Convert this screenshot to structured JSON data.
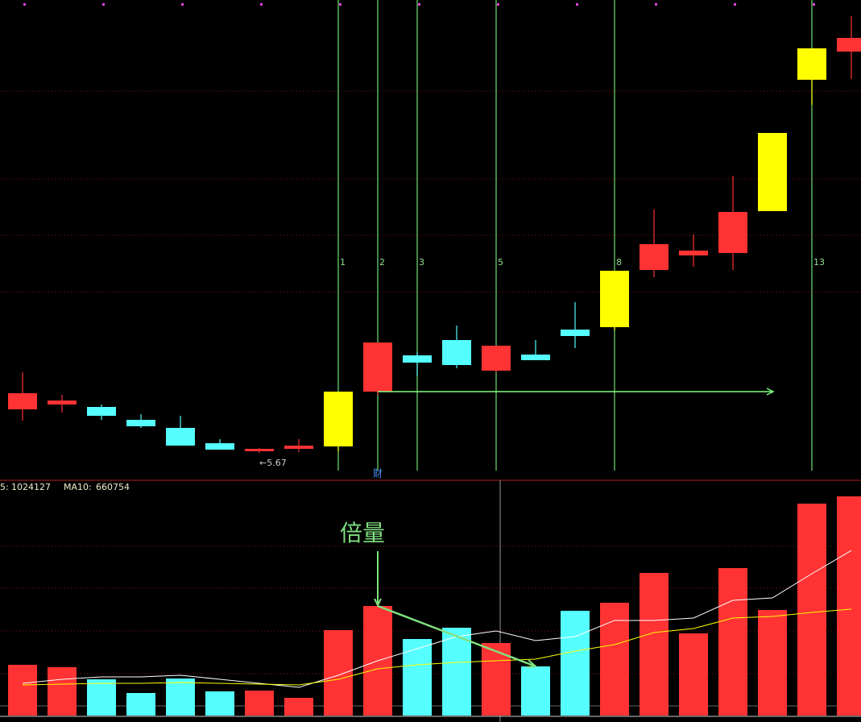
{
  "chart_data": [
    {
      "type": "candlestick",
      "open": [
        6.21,
        6.27,
        6.24,
        6.08,
        5.98,
        5.79,
        5.69,
        5.72,
        5.75,
        6.43,
        6.88,
        7.07,
        6.69,
        6.89,
        7.2,
        7.23,
        7.94,
        8.12,
        8.15,
        8.67,
        10.3,
        10.65
      ],
      "close": [
        6.41,
        6.32,
        6.13,
        6.0,
        5.76,
        5.71,
        5.72,
        5.76,
        6.43,
        7.04,
        6.79,
        6.76,
        7.0,
        6.82,
        7.12,
        7.93,
        8.26,
        8.18,
        8.66,
        9.64,
        10.69,
        10.82
      ],
      "high": [
        6.67,
        6.39,
        6.27,
        6.15,
        6.13,
        5.84,
        5.73,
        5.84,
        6.43,
        7.04,
        6.92,
        7.25,
        7.0,
        7.07,
        7.54,
        7.93,
        8.69,
        8.38,
        9.11,
        9.64,
        10.69,
        11.09
      ],
      "low": [
        6.07,
        6.17,
        6.08,
        5.98,
        5.76,
        5.71,
        5.67,
        5.68,
        5.69,
        6.39,
        6.63,
        6.72,
        6.67,
        6.82,
        6.97,
        7.19,
        7.85,
        7.98,
        7.94,
        8.67,
        9.99,
        10.31
      ],
      "colors": [
        "#ff3333",
        "#ff3333",
        "#55ffff",
        "#55ffff",
        "#55ffff",
        "#55ffff",
        "#ff3333",
        "#ff3333",
        "#ffff00",
        "#ff3333",
        "#55ffff",
        "#55ffff",
        "#ff3333",
        "#55ffff",
        "#55ffff",
        "#ffff00",
        "#ff3333",
        "#ff3333",
        "#ff3333",
        "#ffff00",
        "#ffff00",
        "#ff3333"
      ],
      "ylim": [
        5.33,
        11.29
      ],
      "low_label": "←5.67",
      "time_labels": [
        null,
        null,
        null,
        null,
        null,
        null,
        null,
        null,
        "1",
        "2",
        "3",
        null,
        "5",
        null,
        null,
        "8",
        null,
        null,
        null,
        null,
        "13",
        null
      ],
      "level": 6.43,
      "marker": "财"
    },
    {
      "type": "volume",
      "values": [
        315000,
        300000,
        225000,
        140000,
        230000,
        150000,
        155000,
        110000,
        530000,
        680000,
        475000,
        545000,
        450000,
        305000,
        650000,
        700000,
        885000,
        510000,
        915000,
        655000,
        1315000,
        1360000
      ],
      "up_color": "#ff3333",
      "down_color": "#55ffff",
      "ylim": [
        0,
        1450000
      ],
      "lines": [
        {
          "name": "5:",
          "color": "#ffffff",
          "values": [
            200000,
            225000,
            240000,
            240000,
            250000,
            225000,
            200000,
            175000,
            250000,
            340000,
            415000,
            490000,
            525000,
            465000,
            490000,
            590000,
            590000,
            605000,
            715000,
            730000,
            880000,
            1024127
          ]
        },
        {
          "name": "MA10:",
          "color": "#ffff00",
          "values": [
            190000,
            195000,
            200000,
            200000,
            205000,
            200000,
            195000,
            190000,
            225000,
            290000,
            315000,
            330000,
            340000,
            350000,
            400000,
            440000,
            515000,
            540000,
            605000,
            615000,
            640000,
            660754
          ]
        }
      ],
      "annotation": "倍量"
    }
  ]
}
